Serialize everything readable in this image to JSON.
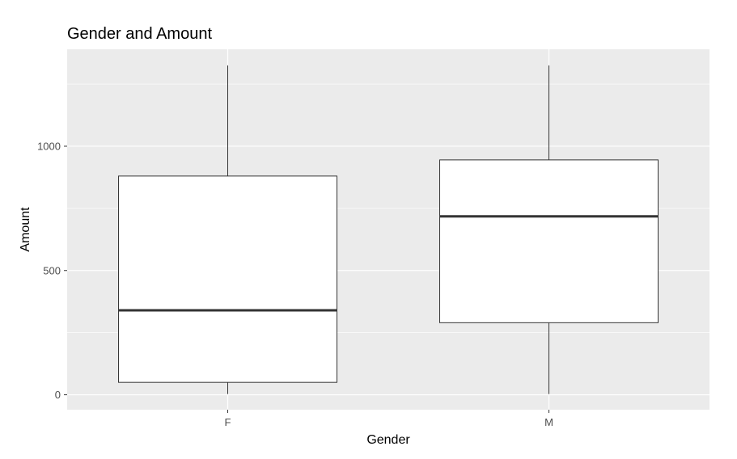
{
  "chart_data": {
    "type": "boxplot",
    "title": "Gender and Amount",
    "xlabel": "Gender",
    "ylabel": "Amount",
    "categories": [
      "F",
      "M"
    ],
    "ylim": [
      -60,
      1390
    ],
    "yticks": [
      0,
      500,
      1000
    ],
    "ytick_labels": [
      "0",
      "500",
      "1000"
    ],
    "grid": true,
    "legend": "none",
    "boxes": [
      {
        "category": "F",
        "min": 3,
        "q1": 50,
        "median": 340,
        "q3": 880,
        "max": 1325
      },
      {
        "category": "M",
        "min": 3,
        "q1": 290,
        "median": 718,
        "q3": 945,
        "max": 1325
      }
    ],
    "colors": {
      "panel": "#ebebeb",
      "grid_major": "#ffffff",
      "box_fill": "#ffffff",
      "box_line": "#333333"
    }
  }
}
